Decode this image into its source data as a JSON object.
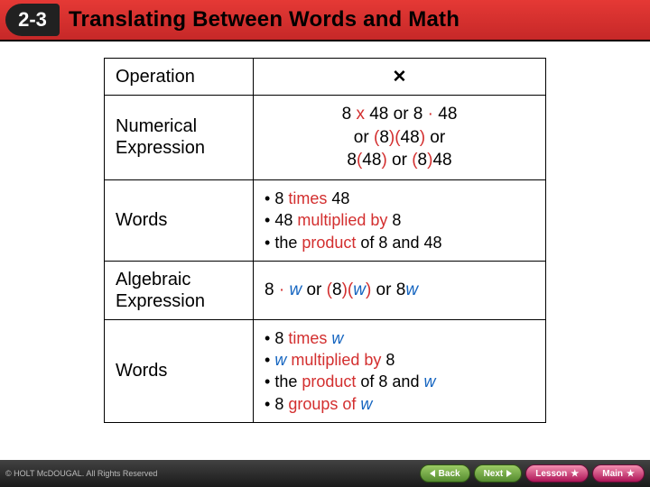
{
  "header": {
    "badge": "2-3",
    "title": "Translating Between Words and Math",
    "bg_from": "#e53935",
    "bg_to": "#c62828"
  },
  "colors": {
    "highlight_red": "#d32f2f",
    "highlight_blue": "#1565c0",
    "border": "#000000",
    "text": "#000000"
  },
  "table": {
    "rows": [
      {
        "label": "Operation",
        "kind": "operation",
        "symbol": "✕"
      },
      {
        "label": "Numerical Expression",
        "kind": "numexpr",
        "line1_parts": [
          "8 ",
          {
            "red": "x"
          },
          " 48 or 8 ",
          {
            "red": "·"
          },
          " 48"
        ],
        "line2_parts": [
          "or ",
          {
            "red": "("
          },
          "8",
          {
            "red": ")("
          },
          "48",
          {
            "red": ")"
          },
          " or"
        ],
        "line3_parts": [
          "8",
          {
            "red": "("
          },
          "48",
          {
            "red": ")"
          },
          " or ",
          {
            "red": "("
          },
          "8",
          {
            "red": ")"
          },
          "48"
        ]
      },
      {
        "label": "Words",
        "kind": "words",
        "items": [
          [
            "8 ",
            {
              "red": "times"
            },
            " 48"
          ],
          [
            "48 ",
            {
              "red": "multiplied by"
            },
            " 8"
          ],
          [
            "the ",
            {
              "red": "product"
            },
            " of 8 and 48"
          ]
        ]
      },
      {
        "label": "Algebraic Expression",
        "kind": "algexpr",
        "parts": [
          "8 ",
          {
            "red": "·"
          },
          " ",
          {
            "blue_it": "w"
          },
          " or ",
          {
            "red": "("
          },
          "8",
          {
            "red": ")("
          },
          {
            "blue_it": "w"
          },
          {
            "red": ")"
          },
          " or 8",
          {
            "blue_it": "w"
          }
        ]
      },
      {
        "label": "Words",
        "kind": "words",
        "items": [
          [
            "8 ",
            {
              "red": "times"
            },
            " ",
            {
              "blue_it": "w"
            }
          ],
          [
            {
              "blue_it": "w"
            },
            " ",
            {
              "red": "multiplied by"
            },
            " 8"
          ],
          [
            "the ",
            {
              "red": "product"
            },
            " of 8 and ",
            {
              "blue_it": "w"
            }
          ],
          [
            "8 ",
            {
              "red": "groups of"
            },
            " ",
            {
              "blue_it": "w"
            }
          ]
        ]
      }
    ]
  },
  "footer": {
    "copyright": "© HOLT McDOUGAL. All Rights Reserved",
    "buttons": {
      "back": "Back",
      "next": "Next",
      "lesson": "Lesson",
      "main": "Main"
    }
  }
}
